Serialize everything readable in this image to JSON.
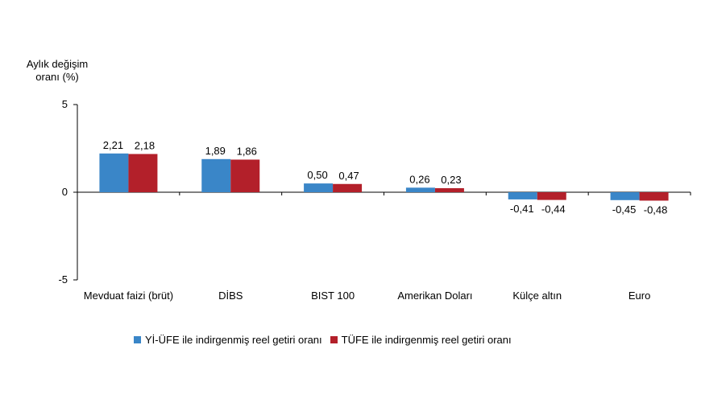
{
  "chart_data": {
    "type": "bar",
    "title": "",
    "ylabel": "Aylık değişim oranı (%)",
    "ylabel_lines": [
      "Aylık değişim",
      "oranı (%)"
    ],
    "ylim": [
      -5,
      5
    ],
    "yticks": [
      "-5",
      "0",
      "5"
    ],
    "grid": false,
    "legend_position": "bottom",
    "categories": [
      "Mevduat faizi (brüt)",
      "DİBS",
      "BIST 100",
      "Amerikan Doları",
      "Külçe altın",
      "Euro"
    ],
    "series": [
      {
        "name": "Yİ-ÜFE ile indirgenmiş reel getiri oranı",
        "color": "#3a86c8",
        "values": [
          2.21,
          1.89,
          0.5,
          0.26,
          -0.41,
          -0.45
        ],
        "labels": [
          "2,21",
          "1,89",
          "0,50",
          "0,26",
          "-0,41",
          "-0,45"
        ]
      },
      {
        "name": "TÜFE ile indirgenmiş reel getiri oranı",
        "color": "#b3202a",
        "values": [
          2.18,
          1.86,
          0.47,
          0.23,
          -0.44,
          -0.48
        ],
        "labels": [
          "2,18",
          "1,86",
          "0,47",
          "0,23",
          "-0,44",
          "-0,48"
        ]
      }
    ]
  }
}
